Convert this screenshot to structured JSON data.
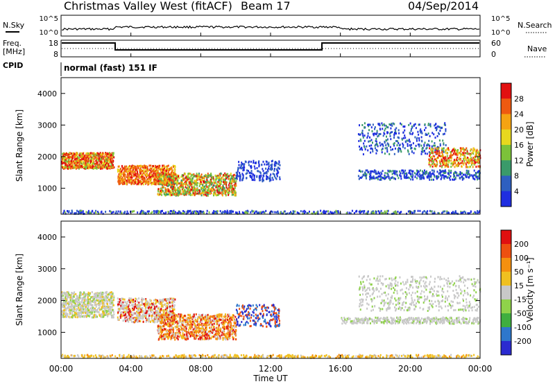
{
  "header": {
    "station": "Christmas Valley West (fitACF)",
    "beam": "Beam 17",
    "date": "04/Sep/2014"
  },
  "noise_panel": {
    "left_label": "N.Sky",
    "right_label": "N.Search",
    "left_ticks": [
      "10^5",
      "10^0"
    ],
    "right_ticks": [
      "10^5",
      "10^0"
    ]
  },
  "freq_panel": {
    "left_label_1": "Freq.",
    "left_label_2": "[MHz]",
    "right_label": "Nave",
    "left_ticks": [
      "18",
      "8"
    ],
    "right_ticks": [
      "60",
      "0"
    ],
    "cpid_label": "CPID",
    "cpid_text": "normal (fast) 151 IF"
  },
  "colors": {
    "power": [
      "#1f2ee0",
      "#2e5fc0",
      "#3a9a6a",
      "#7cc23a",
      "#e8d81e",
      "#f5a312",
      "#ee5a10",
      "#e21010"
    ],
    "velocity": [
      "#2b2bd0",
      "#2e77cc",
      "#3fae3f",
      "#8fd24a",
      "#c8c8c8",
      "#f0c020",
      "#f5900f",
      "#ee5010",
      "#e01010"
    ]
  },
  "chart_data": [
    {
      "type": "heatmap",
      "name": "power",
      "ylabel": "Slant Range [km]",
      "ylim": [
        180,
        4500
      ],
      "yticks": [
        "1000",
        "2000",
        "3000",
        "4000"
      ],
      "xlim_hours": [
        0,
        24
      ],
      "colorbar_label": "Power [dB]",
      "colorbar_ticks": [
        "4",
        "8",
        "12",
        "16",
        "20",
        "24",
        "28"
      ],
      "colorbar_range": [
        0,
        32
      ]
    },
    {
      "type": "heatmap",
      "name": "velocity",
      "ylabel": "Slant Range [km]",
      "ylim": [
        180,
        4500
      ],
      "yticks": [
        "1000",
        "2000",
        "3000",
        "4000"
      ],
      "xlim_hours": [
        0,
        24
      ],
      "colorbar_label": "Velocity [m s⁻¹]",
      "colorbar_ticks": [
        "200",
        "100",
        "50",
        "15",
        "-15",
        "-50",
        "-100",
        "-200"
      ]
    }
  ],
  "xaxis": {
    "label": "Time UT",
    "ticks": [
      "00:00",
      "04:00",
      "08:00",
      "12:00",
      "16:00",
      "20:00",
      "00:00"
    ]
  }
}
